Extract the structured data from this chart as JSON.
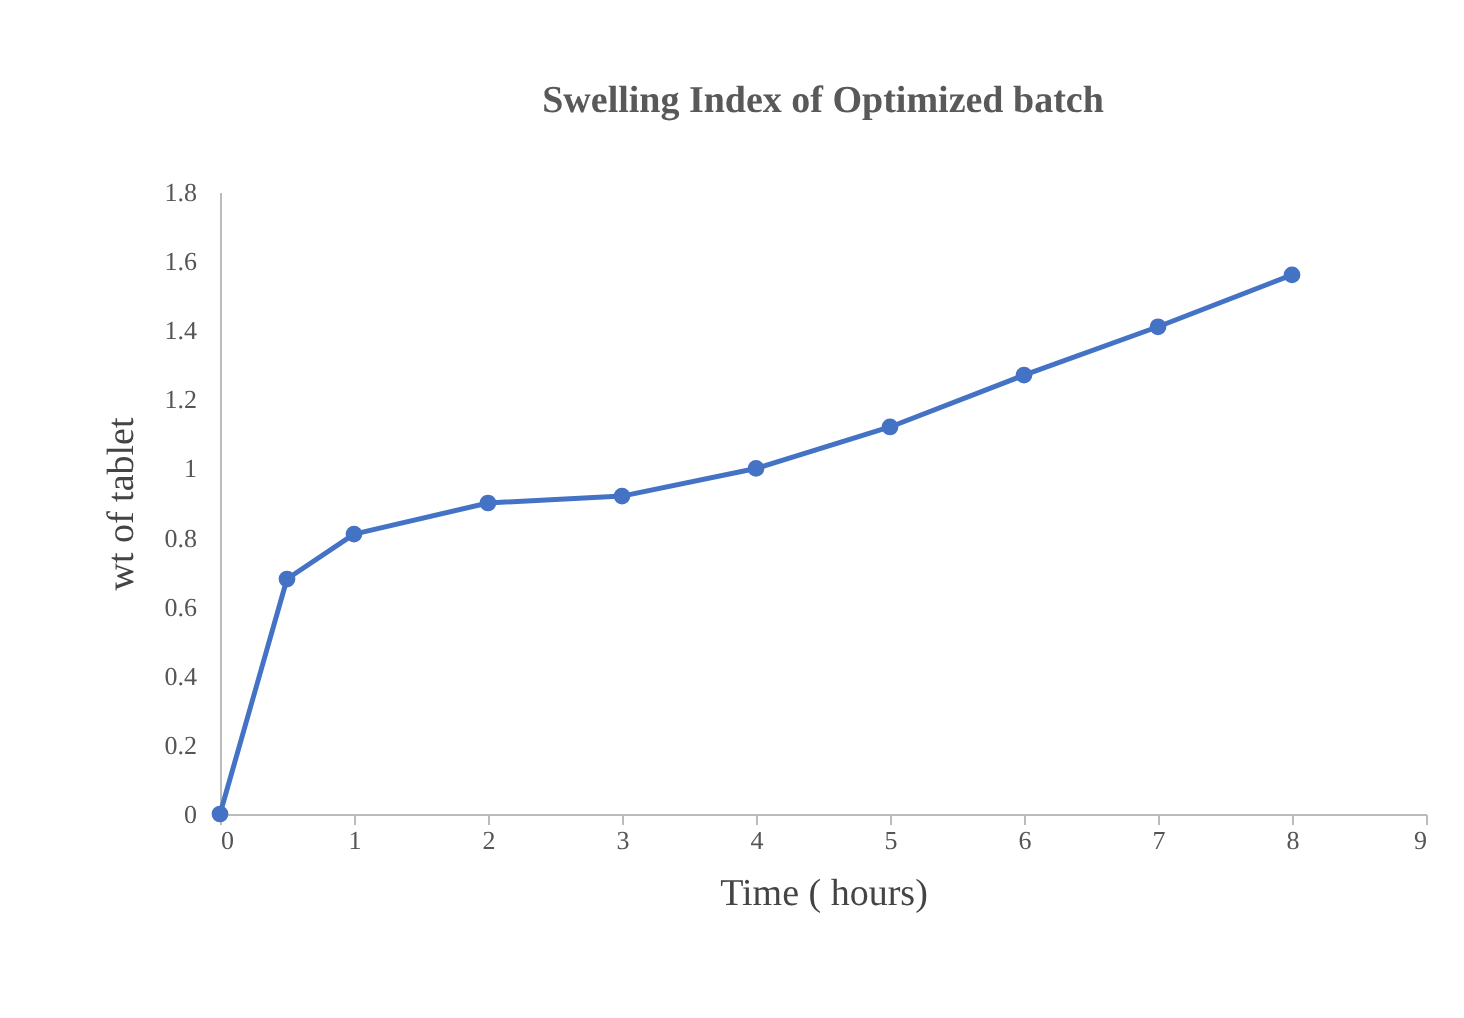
{
  "chart_data": {
    "type": "line",
    "title": "Swelling Index of Optimized batch",
    "xlabel": "Time ( hours)",
    "ylabel": "wt of tablet",
    "x": [
      0,
      0.5,
      1,
      2,
      3,
      4,
      5,
      6,
      7,
      8
    ],
    "series": [
      {
        "color": "#4472c4",
        "values": [
          0,
          0.68,
          0.81,
          0.9,
          0.92,
          1.0,
          1.12,
          1.27,
          1.41,
          1.56
        ]
      }
    ],
    "xlim": [
      0,
      9
    ],
    "xticks": [
      0,
      1,
      2,
      3,
      4,
      5,
      6,
      7,
      8,
      9
    ],
    "ylim": [
      0,
      1.8
    ],
    "yticks": [
      0,
      0.2,
      0.4,
      0.6,
      0.8,
      1,
      1.2,
      1.4,
      1.6,
      1.8
    ],
    "grid": false,
    "legend": false,
    "marker": "circle",
    "line_style": "solid"
  }
}
